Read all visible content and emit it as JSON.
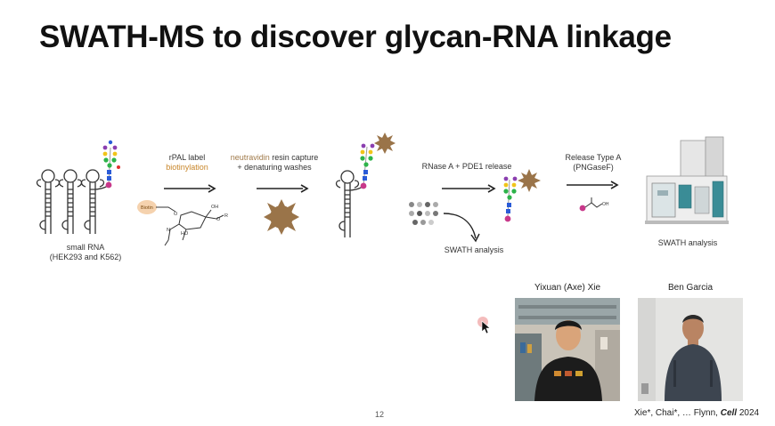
{
  "slide": {
    "title": "SWATH-MS to discover glycan-RNA linkage",
    "page_number": "12"
  },
  "workflow": {
    "small_rna_label_1": "small RNA",
    "small_rna_label_2": "(HEK293 and K562)",
    "rpal_label": "rPAL label",
    "biotinylation": "biotinylation",
    "biotin_tag": "Biotin",
    "neutravidin_word": "neutravidin",
    "resin_capture": " resin capture",
    "denaturing_washes": "+ denaturing washes",
    "release_label": "RNase A + PDE1 release",
    "swath_analysis_1": "SWATH analysis",
    "release_type_1": "Release Type A",
    "release_type_2": "(PNGaseF)",
    "swath_analysis_2": "SWATH analysis",
    "chem": {
      "oh1": "OH",
      "o_r": "O",
      "r": "R",
      "ho": "HO",
      "o_ring": "O",
      "nh": "N",
      "oh_small": "OH"
    }
  },
  "people": [
    {
      "name": "Yixuan (Axe) Xie"
    },
    {
      "name": "Ben Garcia"
    }
  ],
  "citation": {
    "authors": "Xie*, Chai*, … Flynn, ",
    "journal": "Cell",
    "year": " 2024"
  },
  "colors": {
    "orange": "#c8862a",
    "neutravidin": "#a07a4a",
    "resin": "#9a7449",
    "magenta": "#c8388a"
  }
}
